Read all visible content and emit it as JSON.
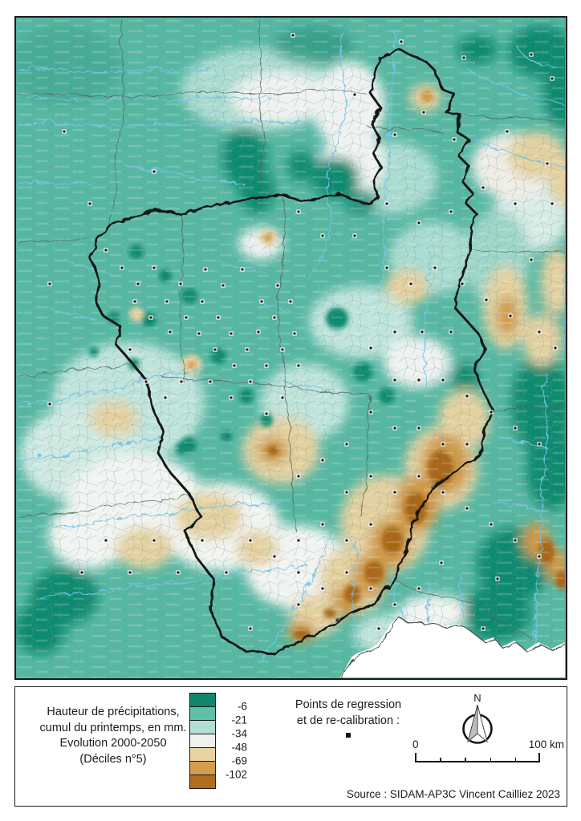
{
  "map": {
    "description": "carte-precipitations-massif-central",
    "palette": {
      "teal_dark": "#0e8a70",
      "teal_mid": "#56b8a3",
      "teal_light": "#aadcd1",
      "near_white": "#eef2f0",
      "tan": "#e4d1a0",
      "orange": "#cf9a4a",
      "brown_dark": "#a96617",
      "river_blue": "#74c4e7",
      "boundary": "#161616"
    }
  },
  "legend": {
    "title_lines": [
      "Hauteur de précipitations,",
      "cumul du printemps, en mm.",
      "Evolution 2000-2050",
      "(Déciles n°5)"
    ],
    "ramp": {
      "colors": [
        "#12866c",
        "#5fbfa8",
        "#b2dfd3",
        "#eef1ef",
        "#e6d4a2",
        "#d39c4e",
        "#b06d1e"
      ],
      "labels": [
        "-6",
        "-21",
        "-34",
        "-48",
        "-69",
        "-102"
      ]
    },
    "points_label_lines": [
      "Points de regression",
      "et de re-calibration :"
    ],
    "compass": {
      "north_label": "N"
    },
    "scalebar": {
      "start_label": "0",
      "end_label": "100 km"
    },
    "source": "Source : SIDAM-AP3C Vincent Cailliez 2023"
  }
}
